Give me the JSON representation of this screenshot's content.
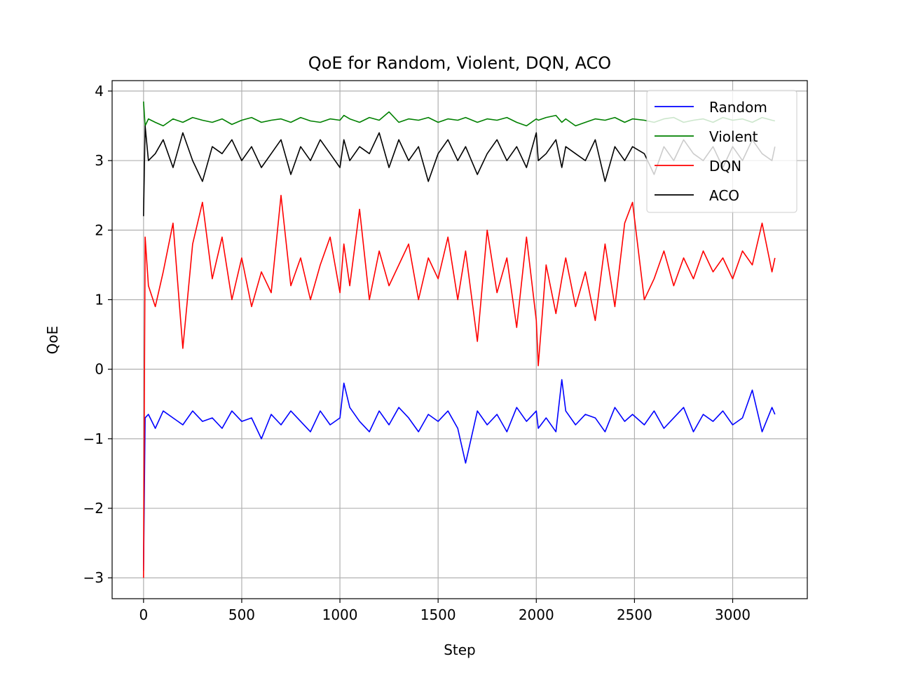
{
  "chart_data": {
    "type": "line",
    "title": "QoE for Random, Violent, DQN, ACO",
    "xlabel": "Step",
    "ylabel": "QoE",
    "xlim": [
      -160,
      3380
    ],
    "ylim": [
      -3.3,
      4.15
    ],
    "x_ticks": [
      0,
      500,
      1000,
      1500,
      2000,
      2500,
      3000
    ],
    "x_tick_labels": [
      "0",
      "500",
      "1000",
      "1500",
      "2000",
      "2500",
      "3000"
    ],
    "y_ticks": [
      -3,
      -2,
      -1,
      0,
      1,
      2,
      3,
      4
    ],
    "y_tick_labels": [
      "−3",
      "−2",
      "−1",
      "0",
      "1",
      "2",
      "3",
      "4"
    ],
    "grid": true,
    "legend_position": "top-right",
    "x": [
      0,
      8,
      25,
      60,
      100,
      150,
      200,
      250,
      300,
      350,
      400,
      450,
      500,
      550,
      600,
      650,
      700,
      750,
      800,
      850,
      900,
      950,
      1000,
      1020,
      1050,
      1100,
      1150,
      1200,
      1250,
      1300,
      1350,
      1400,
      1450,
      1500,
      1550,
      1600,
      1640,
      1700,
      1750,
      1800,
      1850,
      1900,
      1950,
      2000,
      2010,
      2050,
      2100,
      2130,
      2150,
      2200,
      2250,
      2300,
      2350,
      2400,
      2450,
      2490,
      2550,
      2600,
      2650,
      2700,
      2750,
      2800,
      2850,
      2900,
      2950,
      3000,
      3050,
      3100,
      3150,
      3200,
      3215
    ],
    "series": [
      {
        "name": "Random",
        "color": "#0000ff",
        "values": [
          -2.9,
          -0.7,
          -0.65,
          -0.85,
          -0.6,
          -0.7,
          -0.8,
          -0.6,
          -0.75,
          -0.7,
          -0.85,
          -0.6,
          -0.75,
          -0.7,
          -1.0,
          -0.65,
          -0.8,
          -0.6,
          -0.75,
          -0.9,
          -0.6,
          -0.8,
          -0.7,
          -0.2,
          -0.55,
          -0.75,
          -0.9,
          -0.6,
          -0.8,
          -0.55,
          -0.7,
          -0.9,
          -0.65,
          -0.75,
          -0.6,
          -0.85,
          -1.35,
          -0.6,
          -0.8,
          -0.65,
          -0.9,
          -0.55,
          -0.75,
          -0.6,
          -0.85,
          -0.7,
          -0.9,
          -0.15,
          -0.6,
          -0.8,
          -0.65,
          -0.7,
          -0.9,
          -0.55,
          -0.75,
          -0.65,
          -0.8,
          -0.6,
          -0.85,
          -0.7,
          -0.55,
          -0.9,
          -0.65,
          -0.75,
          -0.6,
          -0.8,
          -0.7,
          -0.3,
          -0.9,
          -0.55,
          -0.65
        ]
      },
      {
        "name": "Violent",
        "color": "#008000",
        "values": [
          3.85,
          3.5,
          3.6,
          3.55,
          3.5,
          3.6,
          3.55,
          3.62,
          3.58,
          3.55,
          3.6,
          3.52,
          3.58,
          3.62,
          3.55,
          3.58,
          3.6,
          3.55,
          3.62,
          3.57,
          3.55,
          3.6,
          3.58,
          3.65,
          3.6,
          3.55,
          3.62,
          3.58,
          3.7,
          3.55,
          3.6,
          3.58,
          3.62,
          3.55,
          3.6,
          3.58,
          3.62,
          3.55,
          3.6,
          3.58,
          3.62,
          3.55,
          3.5,
          3.6,
          3.58,
          3.62,
          3.65,
          3.55,
          3.6,
          3.5,
          3.55,
          3.6,
          3.58,
          3.62,
          3.55,
          3.6,
          3.58,
          3.55,
          3.6,
          3.62,
          3.55,
          3.58,
          3.6,
          3.55,
          3.62,
          3.58,
          3.6,
          3.55,
          3.62,
          3.58,
          3.57
        ]
      },
      {
        "name": "DQN",
        "color": "#ff0000",
        "values": [
          -3.0,
          1.9,
          1.2,
          0.9,
          1.4,
          2.1,
          0.3,
          1.8,
          2.4,
          1.3,
          1.9,
          1.0,
          1.6,
          0.9,
          1.4,
          1.1,
          2.5,
          1.2,
          1.6,
          1.0,
          1.5,
          1.9,
          1.1,
          1.8,
          1.2,
          2.3,
          1.0,
          1.7,
          1.2,
          1.5,
          1.8,
          1.0,
          1.6,
          1.3,
          1.9,
          1.0,
          1.7,
          0.4,
          2.0,
          1.1,
          1.6,
          0.6,
          1.9,
          0.7,
          0.05,
          1.5,
          0.8,
          1.3,
          1.6,
          0.9,
          1.4,
          0.7,
          1.8,
          0.9,
          2.1,
          2.4,
          1.0,
          1.3,
          1.7,
          1.2,
          1.6,
          1.3,
          1.7,
          1.4,
          1.6,
          1.3,
          1.7,
          1.5,
          2.1,
          1.4,
          1.6
        ]
      },
      {
        "name": "ACO",
        "color": "#000000",
        "values": [
          2.2,
          3.5,
          3.0,
          3.1,
          3.3,
          2.9,
          3.4,
          3.0,
          2.7,
          3.2,
          3.1,
          3.3,
          3.0,
          3.2,
          2.9,
          3.1,
          3.3,
          2.8,
          3.2,
          3.0,
          3.3,
          3.1,
          2.9,
          3.3,
          3.0,
          3.2,
          3.1,
          3.4,
          2.9,
          3.3,
          3.0,
          3.2,
          2.7,
          3.1,
          3.3,
          3.0,
          3.2,
          2.8,
          3.1,
          3.3,
          3.0,
          3.2,
          2.9,
          3.4,
          3.0,
          3.1,
          3.3,
          2.9,
          3.2,
          3.1,
          3.0,
          3.3,
          2.7,
          3.2,
          3.0,
          3.2,
          3.1,
          2.8,
          3.2,
          3.0,
          3.3,
          3.1,
          3.0,
          3.2,
          2.9,
          3.2,
          3.0,
          3.3,
          3.1,
          3.0,
          3.2
        ]
      }
    ]
  }
}
